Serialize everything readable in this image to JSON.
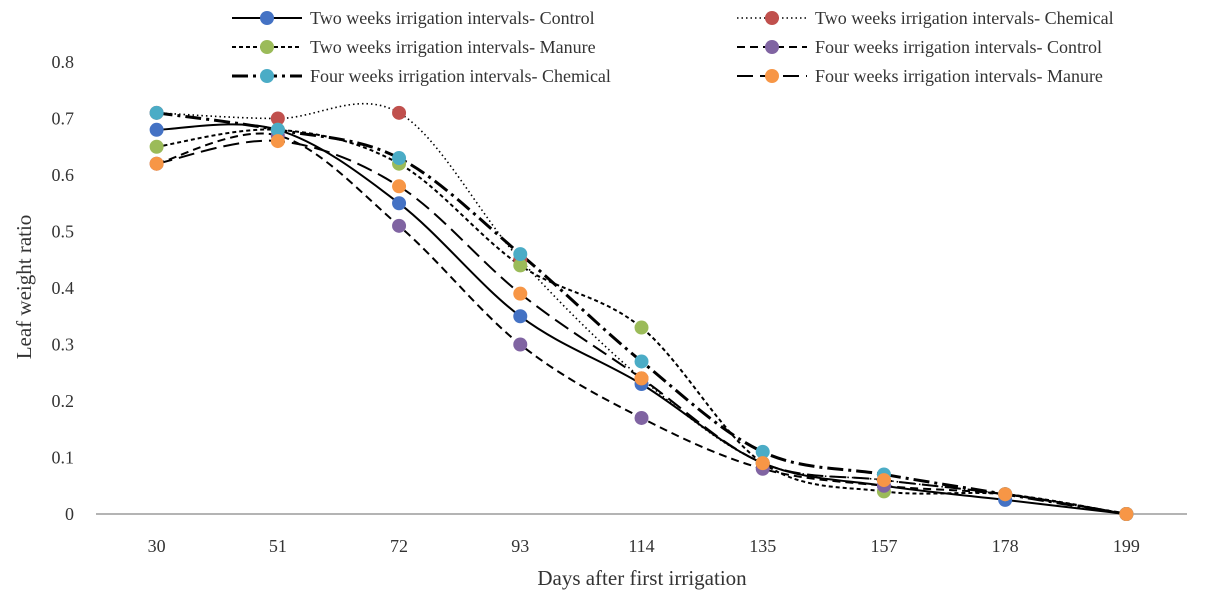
{
  "chart_data": {
    "type": "line",
    "title": "",
    "xlabel": "Days after first irrigation",
    "ylabel": "Leaf weight ratio",
    "categories": [
      "30",
      "51",
      "72",
      "93",
      "114",
      "135",
      "157",
      "178",
      "199"
    ],
    "ylim": [
      0,
      0.8
    ],
    "yticks": [
      "0",
      "0.1",
      "0.2",
      "0.3",
      "0.4",
      "0.5",
      "0.6",
      "0.7",
      "0.8"
    ],
    "grid": false,
    "legend_position": "top",
    "series": [
      {
        "name": "Two weeks irrigation intervals- Control",
        "color": "#4472C4",
        "dash": "solid",
        "values": [
          0.68,
          0.68,
          0.55,
          0.35,
          0.23,
          0.09,
          0.05,
          0.025,
          0.0
        ]
      },
      {
        "name": "Two weeks irrigation intervals- Chemical",
        "color": "#C0504D",
        "dash": "dotted",
        "values": [
          0.71,
          0.7,
          0.71,
          0.45,
          0.24,
          0.09,
          0.06,
          0.035,
          0.0
        ]
      },
      {
        "name": "Two weeks irrigation intervals- Manure",
        "color": "#9BBB59",
        "dash": "short-dash",
        "values": [
          0.65,
          0.68,
          0.62,
          0.44,
          0.33,
          0.09,
          0.04,
          0.035,
          0.0
        ]
      },
      {
        "name": "Four weeks irrigation intervals- Control",
        "color": "#8064A2",
        "dash": "dash",
        "values": [
          0.62,
          0.67,
          0.51,
          0.3,
          0.17,
          0.08,
          0.05,
          0.035,
          0.0
        ]
      },
      {
        "name": "Four weeks irrigation intervals- Chemical",
        "color": "#4BACC6",
        "dash": "long-dash-bold",
        "values": [
          0.71,
          0.68,
          0.63,
          0.46,
          0.27,
          0.11,
          0.07,
          0.035,
          0.0
        ]
      },
      {
        "name": "Four weeks irrigation intervals- Manure",
        "color": "#F79646",
        "dash": "long-dash",
        "values": [
          0.62,
          0.66,
          0.58,
          0.39,
          0.24,
          0.09,
          0.06,
          0.035,
          0.0
        ]
      }
    ]
  }
}
